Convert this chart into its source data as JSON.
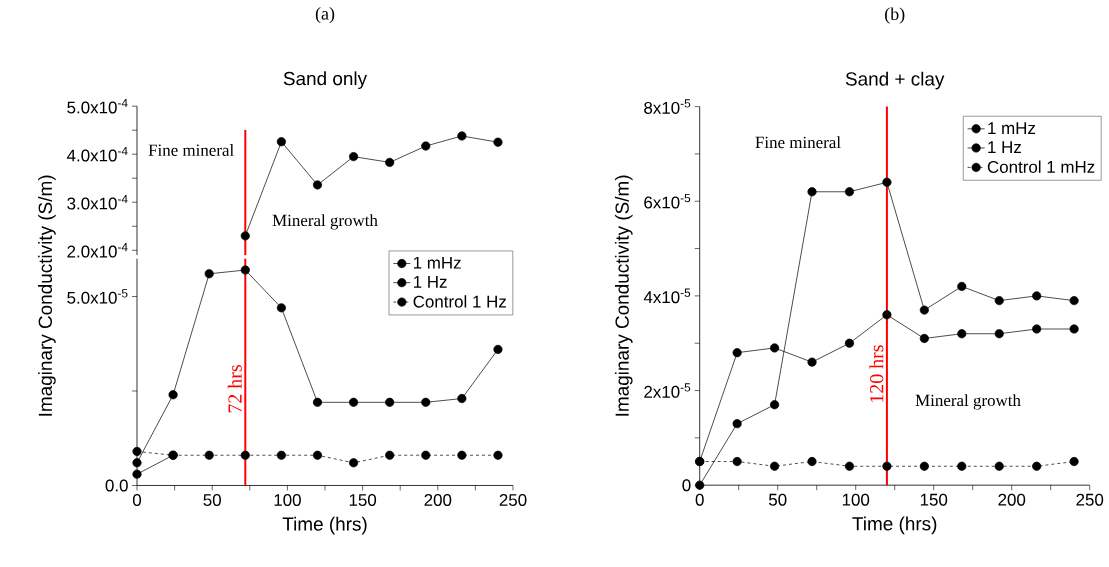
{
  "chart_data": [
    {
      "type": "line",
      "title": "(a)",
      "subtitle": "Sand only",
      "annotations": [
        "Fine mineral",
        "Mineral growth"
      ],
      "x": [
        72,
        96,
        120,
        144,
        168,
        192,
        216,
        240
      ],
      "series": [
        {
          "color": "#000000",
          "values": [
            0.00023,
            0.000426,
            0.000336,
            0.000395,
            0.000383,
            0.000417,
            0.000438,
            0.000425
          ]
        }
      ],
      "xlim": [
        0,
        250
      ],
      "ylim": [
        0.00019,
        0.0005
      ],
      "yticks": [
        {
          "value": 0.0002,
          "label": "2.0x10$^{-4}$"
        },
        {
          "value": 0.00025,
          "label": null
        },
        {
          "value": 0.0003,
          "label": "3.0x10$^{-4}$"
        },
        {
          "value": 0.00035,
          "label": null
        },
        {
          "value": 0.0004,
          "label": "4.0x10$^{-4}$"
        },
        {
          "value": 0.00045,
          "label": null
        },
        {
          "value": 0.0005,
          "label": "5.0x10$^{-4}$"
        }
      ],
      "ref_lines": [
        {
          "axis": "x",
          "value": 72,
          "color": "#ff0000"
        }
      ],
      "marker": "circle",
      "tick_labels": "y"
    },
    {
      "type": "line",
      "xlabel": "Time (hrs)",
      "ylabel": "Imaginary Conductivity (S/m)",
      "x": [
        0,
        24,
        48,
        72,
        96,
        120,
        144,
        168,
        192,
        216,
        240
      ],
      "series": [
        {
          "name": "1 mHz",
          "color": "#000000",
          "values": [
            3e-06,
            8e-06,
            null,
            null,
            null,
            null,
            null,
            null,
            null,
            null,
            null
          ]
        },
        {
          "name": "1 Hz",
          "color": "#000000",
          "values": [
            6e-06,
            2.4e-05,
            5.6e-05,
            5.7e-05,
            4.7e-05,
            2.2e-05,
            2.2e-05,
            2.2e-05,
            2.2e-05,
            2.3e-05,
            3.6e-05
          ]
        },
        {
          "name": "Control 1 Hz",
          "color": "#000000",
          "line_style": "dashed",
          "values": [
            9e-06,
            8e-06,
            8e-06,
            8e-06,
            8e-06,
            8e-06,
            6e-06,
            8e-06,
            8e-06,
            8e-06,
            8e-06
          ]
        }
      ],
      "xlim": [
        0,
        250
      ],
      "ylim": [
        0,
        6e-05
      ],
      "xticks": [
        0,
        {
          "value": 25,
          "label": null
        },
        50,
        {
          "value": 75,
          "label": null
        },
        100,
        {
          "value": 125,
          "label": null
        },
        150,
        {
          "value": 175,
          "label": null
        },
        200,
        {
          "value": 225,
          "label": null
        },
        250
      ],
      "yticks": [
        {
          "value": 0,
          "label": "0.0"
        },
        {
          "value": 2.5e-05,
          "label": null
        },
        {
          "value": 5e-05,
          "label": "5.0x10$^{-5}$"
        }
      ],
      "ref_lines": [
        {
          "axis": "x",
          "value": 72,
          "label": "72 hrs",
          "color": "#ff0000"
        }
      ],
      "marker": "circle",
      "legend": "top right"
    },
    {
      "type": "line",
      "title": "(b)",
      "subtitle": "Sand + clay",
      "xlabel": "Time (hrs)",
      "ylabel": "Imaginary Conductivity (S/m)",
      "annotations": [
        "Fine mineral",
        "Mineral growth"
      ],
      "x": [
        0,
        24,
        48,
        72,
        96,
        120,
        144,
        168,
        192,
        216,
        240
      ],
      "series": [
        {
          "name": "1 mHz",
          "color": "#000000",
          "values": [
            0,
            1.3e-05,
            1.7e-05,
            6.2e-05,
            6.2e-05,
            6.4e-05,
            3.7e-05,
            4.2e-05,
            3.9e-05,
            4e-05,
            3.9e-05
          ]
        },
        {
          "name": "1 Hz",
          "color": "#000000",
          "values": [
            5e-06,
            2.8e-05,
            2.9e-05,
            2.6e-05,
            3e-05,
            3.6e-05,
            3.1e-05,
            3.2e-05,
            3.2e-05,
            3.3e-05,
            3.3e-05
          ]
        },
        {
          "name": "Control 1 mHz",
          "color": "#000000",
          "line_style": "dashed",
          "values": [
            5e-06,
            5e-06,
            4e-06,
            5e-06,
            4e-06,
            4e-06,
            4e-06,
            4e-06,
            4e-06,
            4e-06,
            5e-06
          ]
        }
      ],
      "xlim": [
        0,
        250
      ],
      "ylim": [
        0,
        8e-05
      ],
      "xticks": [
        0,
        {
          "value": 25,
          "label": null
        },
        50,
        {
          "value": 75,
          "label": null
        },
        100,
        {
          "value": 125,
          "label": null
        },
        150,
        {
          "value": 175,
          "label": null
        },
        200,
        {
          "value": 225,
          "label": null
        },
        250
      ],
      "yticks": [
        {
          "value": 0,
          "label": "0"
        },
        {
          "value": 1e-05,
          "label": null
        },
        {
          "value": 2e-05,
          "label": "2x10$^{-5}$"
        },
        {
          "value": 3e-05,
          "label": null
        },
        {
          "value": 4e-05,
          "label": "4x10$^{-5}$"
        },
        {
          "value": 5e-05,
          "label": null
        },
        {
          "value": 6e-05,
          "label": "6x10$^{-5}$"
        },
        {
          "value": 7e-05,
          "label": null
        },
        {
          "value": 8e-05,
          "label": "8x10$^{-5}$"
        }
      ],
      "ref_lines": [
        {
          "axis": "x",
          "value": 120,
          "label": "120 hrs",
          "color": "#ff0000"
        }
      ],
      "marker": "circle",
      "legend": "top right"
    }
  ]
}
